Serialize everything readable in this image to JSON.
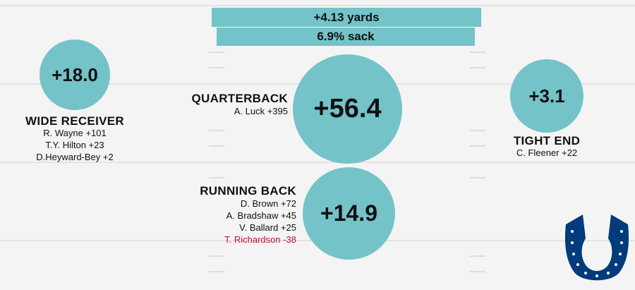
{
  "top_bars": {
    "yards": "+4.13 yards",
    "sack": "6.9% sack"
  },
  "positions": {
    "wide_receiver": {
      "value": "+18.0",
      "title": "WIDE RECEIVER",
      "players": [
        "R. Wayne +101",
        "T.Y. Hilton +23",
        "D.Heyward-Bey +2"
      ]
    },
    "quarterback": {
      "value": "+56.4",
      "title": "QUARTERBACK",
      "players": [
        "A. Luck +395"
      ]
    },
    "tight_end": {
      "value": "+3.1",
      "title": "TIGHT END",
      "players": [
        "C. Fleener +22"
      ]
    },
    "running_back": {
      "value": "+14.9",
      "title": "RUNNING BACK",
      "players": [
        "D. Brown +72",
        "A. Bradshaw +45",
        "V. Ballard +25",
        "T. Richardson -38"
      ]
    }
  },
  "colors": {
    "accent": "#74c3c8",
    "negative": "#c8102e",
    "logo": "#003b7b"
  },
  "logo": "horseshoe-logo"
}
